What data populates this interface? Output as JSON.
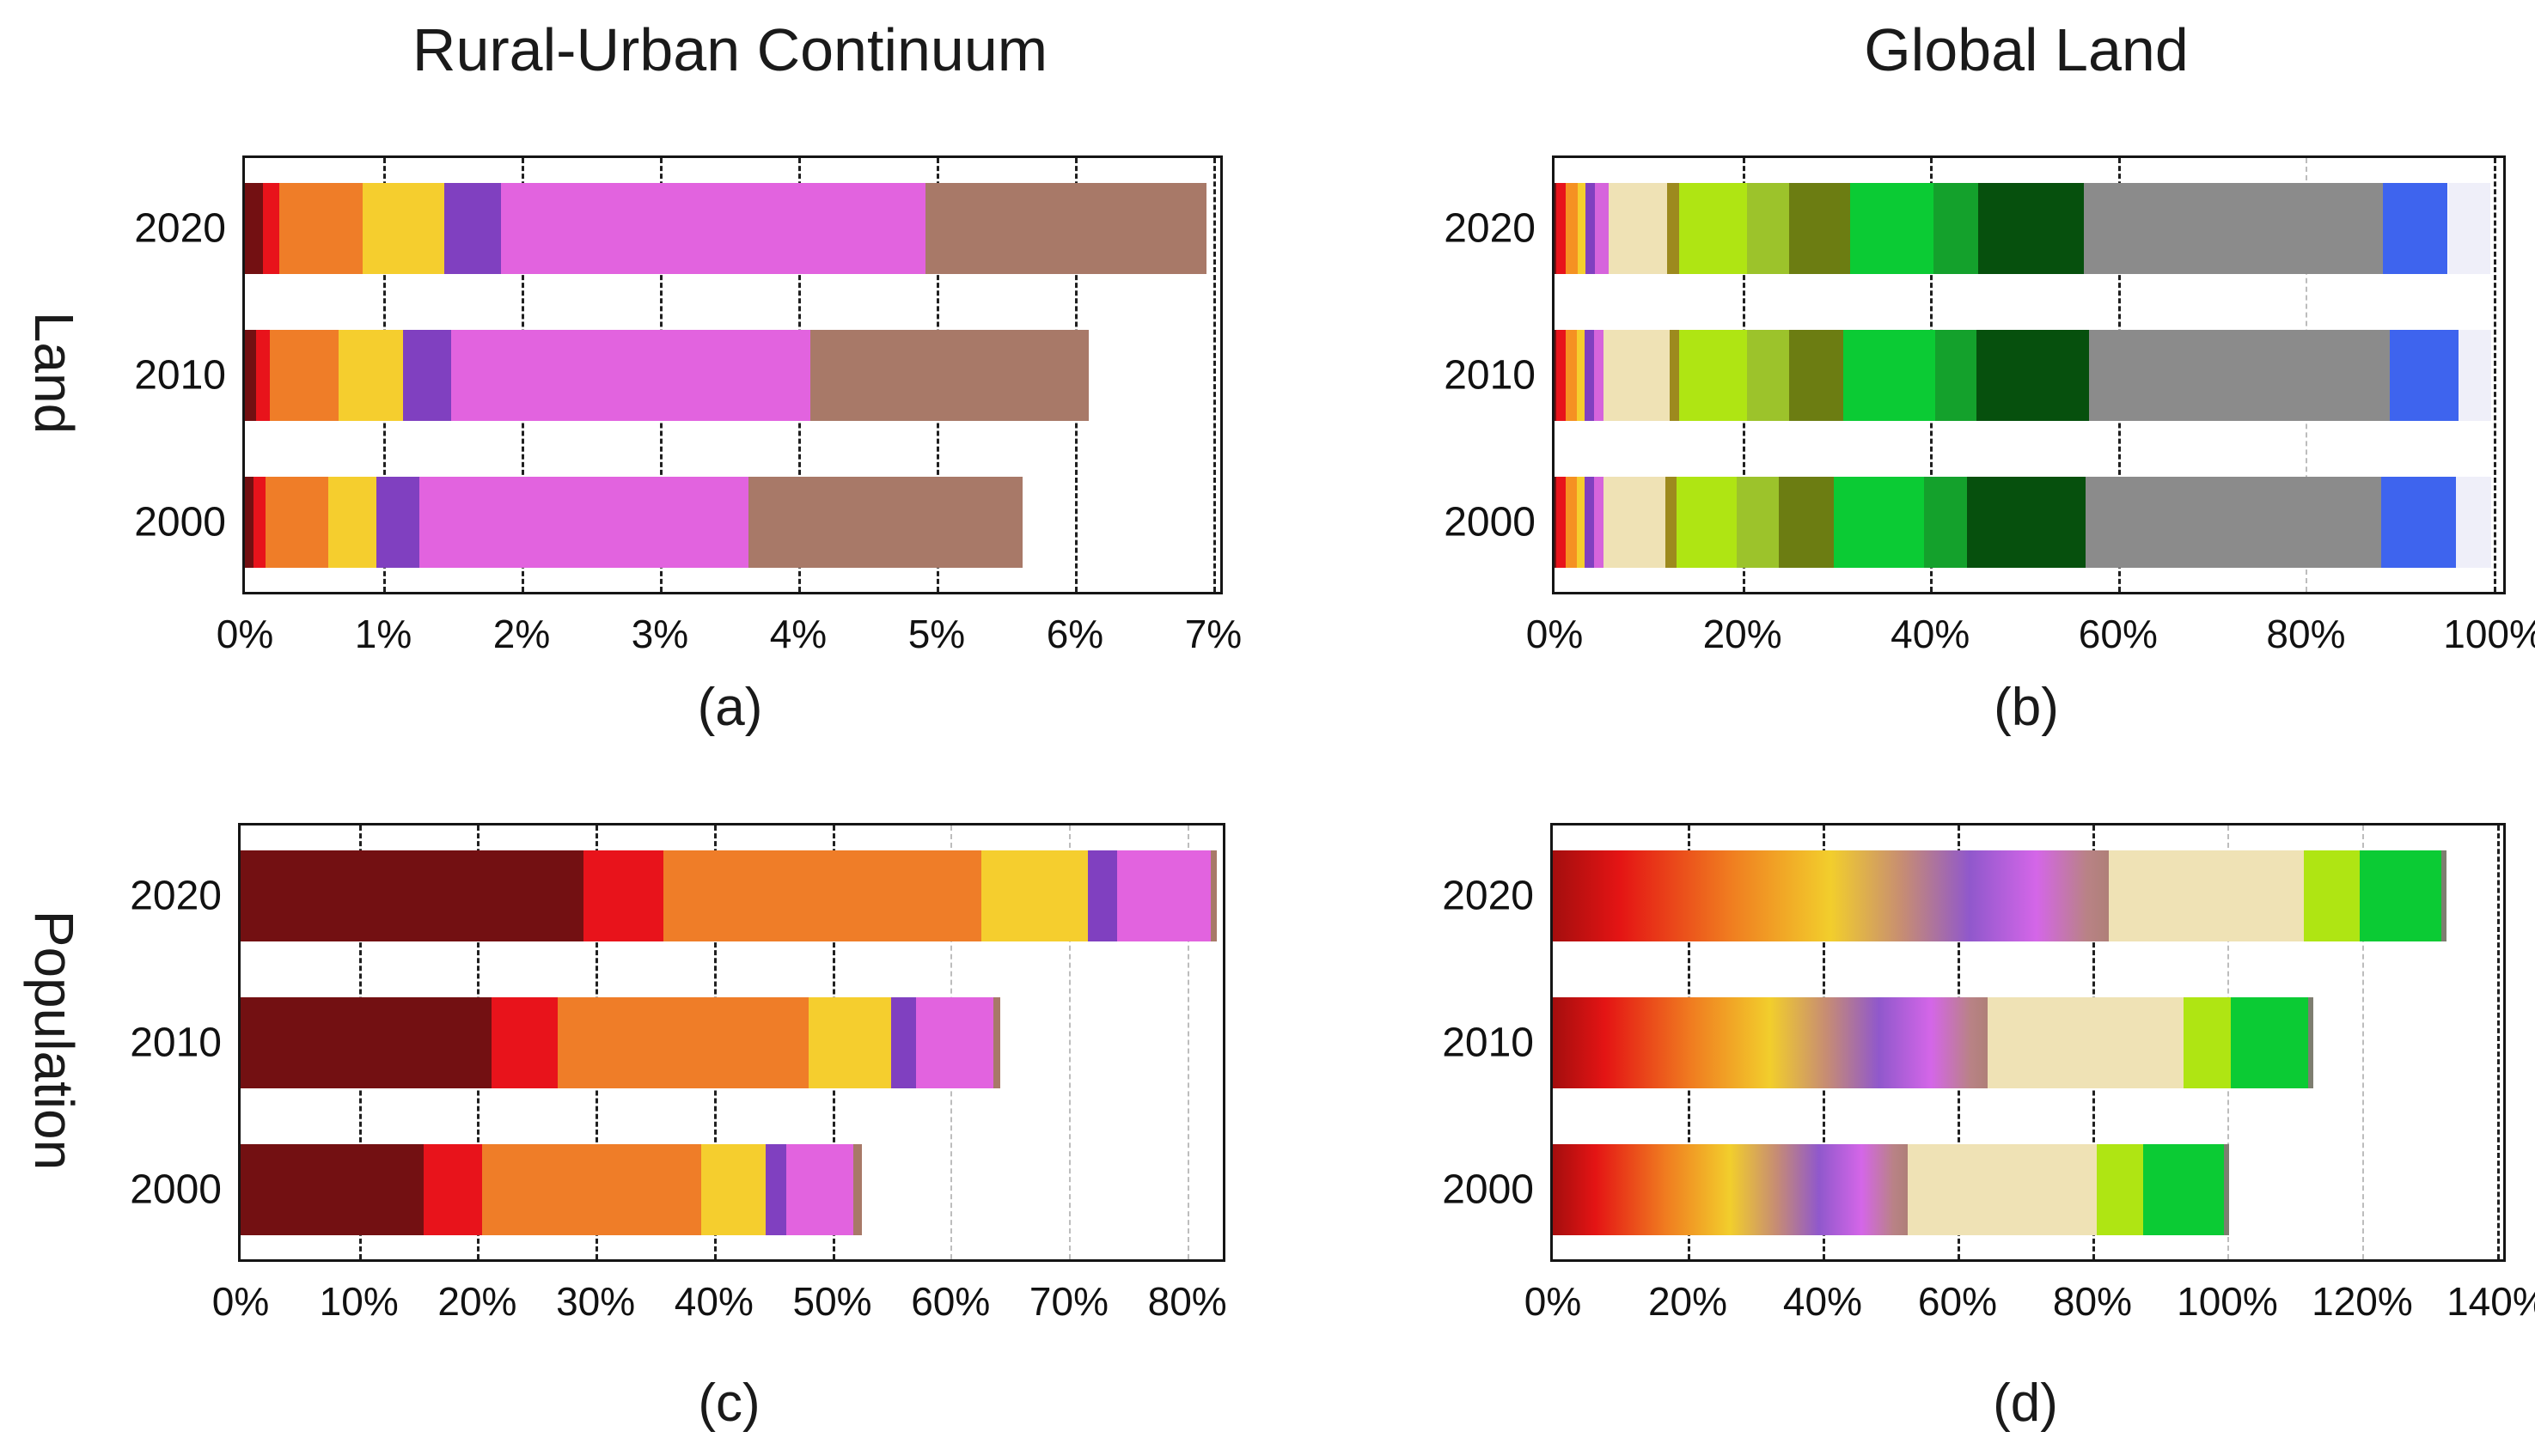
{
  "row_labels": [
    "Land",
    "Population"
  ],
  "chart_data": [
    {
      "type": "bar",
      "stacked": true,
      "orientation": "horizontal",
      "title": "Rural-Urban Continuum",
      "caption": "(a)",
      "group": "Land",
      "categories": [
        "2020",
        "2010",
        "2000"
      ],
      "x_max": 7.05,
      "grid": true,
      "light_gridlines": [],
      "x_ticks": [
        {
          "value": 0,
          "label": "0%"
        },
        {
          "value": 1,
          "label": "1%"
        },
        {
          "value": 2,
          "label": "2%"
        },
        {
          "value": 3,
          "label": "3%"
        },
        {
          "value": 4,
          "label": "4%"
        },
        {
          "value": 5,
          "label": "5%"
        },
        {
          "value": 6,
          "label": "6%"
        },
        {
          "value": 7,
          "label": "7%"
        }
      ],
      "series": [
        {
          "name": "dark-red",
          "color": "#731012",
          "values": [
            0.13,
            0.08,
            0.06
          ]
        },
        {
          "name": "red",
          "color": "#E8131B",
          "values": [
            0.12,
            0.1,
            0.09
          ]
        },
        {
          "name": "orange",
          "color": "#EF7D28",
          "values": [
            0.6,
            0.5,
            0.45
          ]
        },
        {
          "name": "gold",
          "color": "#F5CE2E",
          "values": [
            0.59,
            0.46,
            0.35
          ]
        },
        {
          "name": "purple",
          "color": "#8040C0",
          "values": [
            0.41,
            0.35,
            0.31
          ]
        },
        {
          "name": "orchid",
          "color": "#E263DF",
          "values": [
            3.07,
            2.6,
            2.38
          ]
        },
        {
          "name": "brown",
          "color": "#A87968",
          "values": [
            2.03,
            2.01,
            1.98
          ]
        }
      ]
    },
    {
      "type": "bar",
      "stacked": true,
      "orientation": "horizontal",
      "title": "Global Land",
      "caption": "(b)",
      "group": "Land",
      "categories": [
        "2020",
        "2010",
        "2000"
      ],
      "x_max": 101,
      "grid": true,
      "light_gridlines": [
        80
      ],
      "x_ticks": [
        {
          "value": 0,
          "label": "0%"
        },
        {
          "value": 20,
          "label": "20%"
        },
        {
          "value": 40,
          "label": "40%"
        },
        {
          "value": 60,
          "label": "60%"
        },
        {
          "value": 80,
          "label": "80%"
        },
        {
          "value": 100,
          "label": "100%"
        }
      ],
      "series": [
        {
          "name": "dark-red",
          "color": "#731012",
          "values": [
            0.2,
            0.2,
            0.2
          ]
        },
        {
          "name": "red",
          "color": "#E8131B",
          "values": [
            1.0,
            1.0,
            1.0
          ]
        },
        {
          "name": "orange",
          "color": "#F59122",
          "values": [
            1.3,
            1.2,
            1.2
          ]
        },
        {
          "name": "gold",
          "color": "#F5CE2E",
          "values": [
            0.8,
            0.8,
            0.8
          ]
        },
        {
          "name": "purple",
          "color": "#8040C0",
          "values": [
            1.0,
            1.0,
            1.0
          ]
        },
        {
          "name": "orchid",
          "color": "#D664DC",
          "values": [
            1.5,
            1.0,
            1.0
          ]
        },
        {
          "name": "wheat",
          "color": "#EFE2B5",
          "values": [
            6.2,
            7.1,
            6.6
          ]
        },
        {
          "name": "olive",
          "color": "#9D8A1E",
          "values": [
            1.3,
            1.0,
            1.2
          ]
        },
        {
          "name": "yellow-green",
          "color": "#AFE513",
          "values": [
            7.2,
            7.2,
            6.4
          ]
        },
        {
          "name": "medium-yellow-green",
          "color": "#9CC32B",
          "values": [
            4.5,
            4.5,
            4.5
          ]
        },
        {
          "name": "olive-green",
          "color": "#6C7D12",
          "values": [
            6.5,
            5.7,
            5.8
          ]
        },
        {
          "name": "green",
          "color": "#0BCB34",
          "values": [
            8.8,
            9.8,
            9.6
          ]
        },
        {
          "name": "medium-green",
          "color": "#14A12C",
          "values": [
            4.8,
            4.4,
            4.6
          ]
        },
        {
          "name": "dark-green",
          "color": "#06500D",
          "values": [
            11.3,
            12.0,
            12.6
          ]
        },
        {
          "name": "gray",
          "color": "#8B8B8B",
          "values": [
            31.8,
            32.0,
            31.5
          ]
        },
        {
          "name": "blue",
          "color": "#3E64EE",
          "values": [
            6.9,
            7.3,
            8.0
          ]
        },
        {
          "name": "lavender",
          "color": "#EFEFF9",
          "values": [
            4.5,
            3.5,
            3.7
          ]
        }
      ]
    },
    {
      "type": "bar",
      "stacked": true,
      "orientation": "horizontal",
      "title": "",
      "caption": "(c)",
      "group": "Population",
      "categories": [
        "2020",
        "2010",
        "2000"
      ],
      "x_max": 83,
      "grid": true,
      "light_gridlines": [
        60,
        70,
        80
      ],
      "x_ticks": [
        {
          "value": 0,
          "label": "0%"
        },
        {
          "value": 10,
          "label": "10%"
        },
        {
          "value": 20,
          "label": "20%"
        },
        {
          "value": 30,
          "label": "30%"
        },
        {
          "value": 40,
          "label": "40%"
        },
        {
          "value": 50,
          "label": "50%"
        },
        {
          "value": 60,
          "label": "60%"
        },
        {
          "value": 70,
          "label": "70%"
        },
        {
          "value": 80,
          "label": "80%"
        }
      ],
      "series": [
        {
          "name": "dark-red",
          "color": "#731012",
          "values": [
            29.0,
            21.2,
            15.5
          ]
        },
        {
          "name": "red",
          "color": "#E8131B",
          "values": [
            6.7,
            5.6,
            4.9
          ]
        },
        {
          "name": "orange",
          "color": "#EF7D28",
          "values": [
            26.9,
            21.2,
            18.5
          ]
        },
        {
          "name": "gold",
          "color": "#F5CE2E",
          "values": [
            9.0,
            7.0,
            5.5
          ]
        },
        {
          "name": "purple",
          "color": "#8040C0",
          "values": [
            2.5,
            2.1,
            1.7
          ]
        },
        {
          "name": "orchid",
          "color": "#E263DF",
          "values": [
            7.9,
            6.5,
            5.7
          ]
        },
        {
          "name": "brown",
          "color": "#A87968",
          "values": [
            0.5,
            0.6,
            0.7
          ]
        }
      ]
    },
    {
      "type": "bar",
      "stacked": true,
      "orientation": "horizontal",
      "title": "",
      "caption": "(d)",
      "group": "Population",
      "categories": [
        "2020",
        "2010",
        "2000"
      ],
      "x_max": 140.9,
      "grid": true,
      "light_gridlines": [
        100,
        120
      ],
      "x_ticks": [
        {
          "value": 0,
          "label": "0%"
        },
        {
          "value": 20,
          "label": "20%"
        },
        {
          "value": 40,
          "label": "40%"
        },
        {
          "value": 60,
          "label": "60%"
        },
        {
          "value": 80,
          "label": "80%"
        },
        {
          "value": 100,
          "label": "100%"
        },
        {
          "value": 120,
          "label": "120%"
        },
        {
          "value": 140,
          "label": "140%"
        }
      ],
      "gradient_lead": {
        "name": "rural-urban-continuum-blend",
        "values": [
          82.4,
          64.5,
          52.6
        ],
        "stops": [
          {
            "pos": 0.0,
            "color": "#A40E0E"
          },
          {
            "pos": 0.12,
            "color": "#E41414"
          },
          {
            "pos": 0.32,
            "color": "#F07D20"
          },
          {
            "pos": 0.5,
            "color": "#F2CE2C"
          },
          {
            "pos": 0.63,
            "color": "#C68C74"
          },
          {
            "pos": 0.75,
            "color": "#9058CC"
          },
          {
            "pos": 0.87,
            "color": "#D466E8"
          },
          {
            "pos": 0.96,
            "color": "#B98286"
          },
          {
            "pos": 1.0,
            "color": "#AF8078"
          }
        ]
      },
      "series": [
        {
          "name": "wheat",
          "color": "#EFE2B5",
          "values": [
            29.0,
            29.0,
            28.1
          ]
        },
        {
          "name": "yellow-green",
          "color": "#AFE513",
          "values": [
            8.2,
            7.0,
            6.8
          ]
        },
        {
          "name": "green",
          "color": "#0BCB34",
          "values": [
            12.1,
            11.5,
            12.0
          ]
        },
        {
          "name": "dark-sliver",
          "color": "#7E7E70",
          "values": [
            0.8,
            0.8,
            0.8
          ]
        }
      ]
    }
  ]
}
